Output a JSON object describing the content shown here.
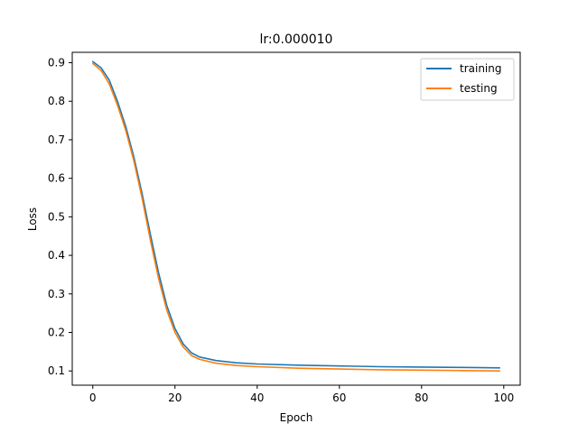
{
  "chart_data": {
    "type": "line",
    "title": "lr:0.000010",
    "xlabel": "Epoch",
    "ylabel": "Loss",
    "xlim": [
      -5,
      104
    ],
    "ylim": [
      0.063,
      0.927
    ],
    "xticks": [
      0,
      20,
      40,
      60,
      80,
      100
    ],
    "yticks": [
      0.1,
      0.2,
      0.3,
      0.4,
      0.5,
      0.6,
      0.7,
      0.8,
      0.9
    ],
    "grid": false,
    "legend": "top-right",
    "series": [
      {
        "name": "training",
        "color": "#1f77b4",
        "x": [
          0,
          2,
          4,
          6,
          8,
          10,
          12,
          14,
          16,
          18,
          20,
          22,
          24,
          26,
          30,
          35,
          40,
          50,
          60,
          70,
          80,
          90,
          99
        ],
        "y": [
          0.903,
          0.887,
          0.855,
          0.8,
          0.735,
          0.655,
          0.56,
          0.455,
          0.355,
          0.27,
          0.21,
          0.17,
          0.147,
          0.136,
          0.127,
          0.121,
          0.118,
          0.115,
          0.113,
          0.111,
          0.11,
          0.109,
          0.108
        ]
      },
      {
        "name": "testing",
        "color": "#ff7f0e",
        "x": [
          0,
          2,
          4,
          6,
          8,
          10,
          12,
          14,
          16,
          18,
          20,
          22,
          24,
          26,
          30,
          35,
          40,
          50,
          60,
          70,
          80,
          90,
          99
        ],
        "y": [
          0.898,
          0.88,
          0.845,
          0.79,
          0.725,
          0.645,
          0.548,
          0.44,
          0.34,
          0.258,
          0.2,
          0.162,
          0.14,
          0.13,
          0.12,
          0.114,
          0.111,
          0.107,
          0.105,
          0.103,
          0.102,
          0.101,
          0.1
        ]
      }
    ]
  }
}
